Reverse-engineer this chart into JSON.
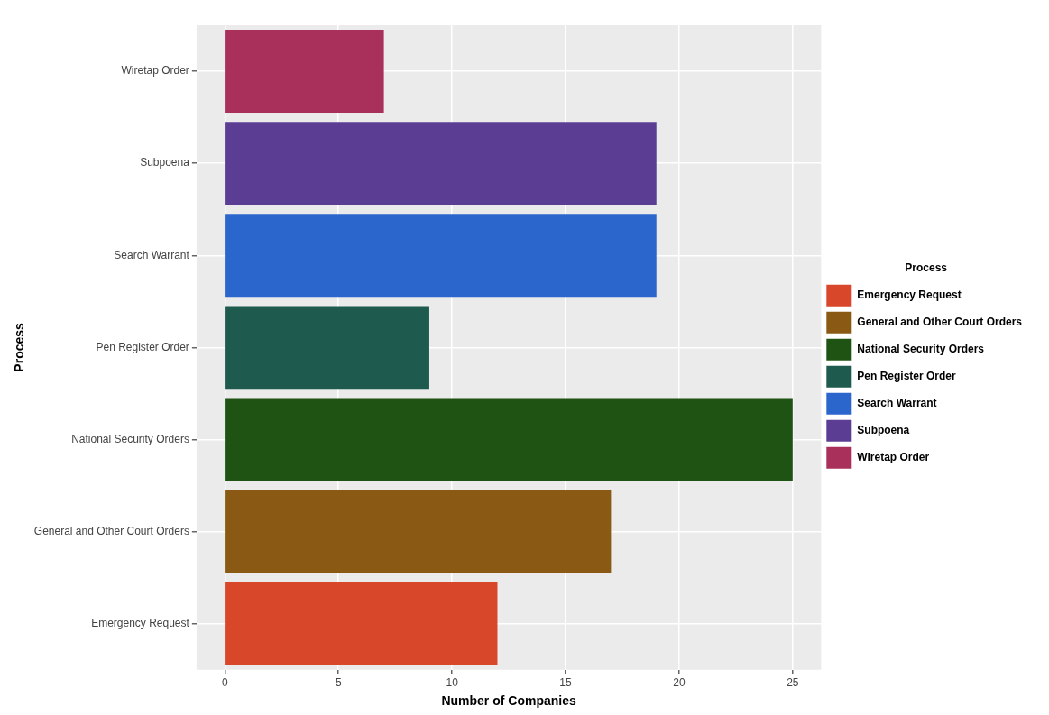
{
  "chart_data": {
    "type": "bar",
    "orientation": "horizontal",
    "categories": [
      "Wiretap Order",
      "Subpoena",
      "Search Warrant",
      "Pen Register Order",
      "National Security Orders",
      "General and Other Court Orders",
      "Emergency Request"
    ],
    "series": [
      {
        "name": "Emergency Request",
        "color": "#d9472b",
        "values": [
          null,
          null,
          null,
          null,
          null,
          null,
          12
        ]
      },
      {
        "name": "General and Other Court Orders",
        "color": "#8a5a14",
        "values": [
          null,
          null,
          null,
          null,
          null,
          17,
          null
        ]
      },
      {
        "name": "National Security Orders",
        "color": "#1f5314",
        "values": [
          null,
          null,
          null,
          null,
          25,
          null,
          null
        ]
      },
      {
        "name": "Pen Register Order",
        "color": "#1e5a4e",
        "values": [
          null,
          null,
          null,
          9,
          null,
          null,
          null
        ]
      },
      {
        "name": "Search Warrant",
        "color": "#2b66cc",
        "values": [
          null,
          null,
          19,
          null,
          null,
          null,
          null
        ]
      },
      {
        "name": "Subpoena",
        "color": "#5b3e94",
        "values": [
          null,
          19,
          null,
          null,
          null,
          null,
          null
        ]
      },
      {
        "name": "Wiretap Order",
        "color": "#a8305a",
        "values": [
          7,
          null,
          null,
          null,
          null,
          null,
          null
        ]
      }
    ],
    "xlim": [
      -1.25,
      26.25
    ],
    "xticks": [
      0,
      5,
      10,
      15,
      20,
      25
    ],
    "xlabel": "Number of Companies",
    "ylabel": "Process",
    "legend_title": "Process",
    "legend": "right",
    "grid": true
  }
}
